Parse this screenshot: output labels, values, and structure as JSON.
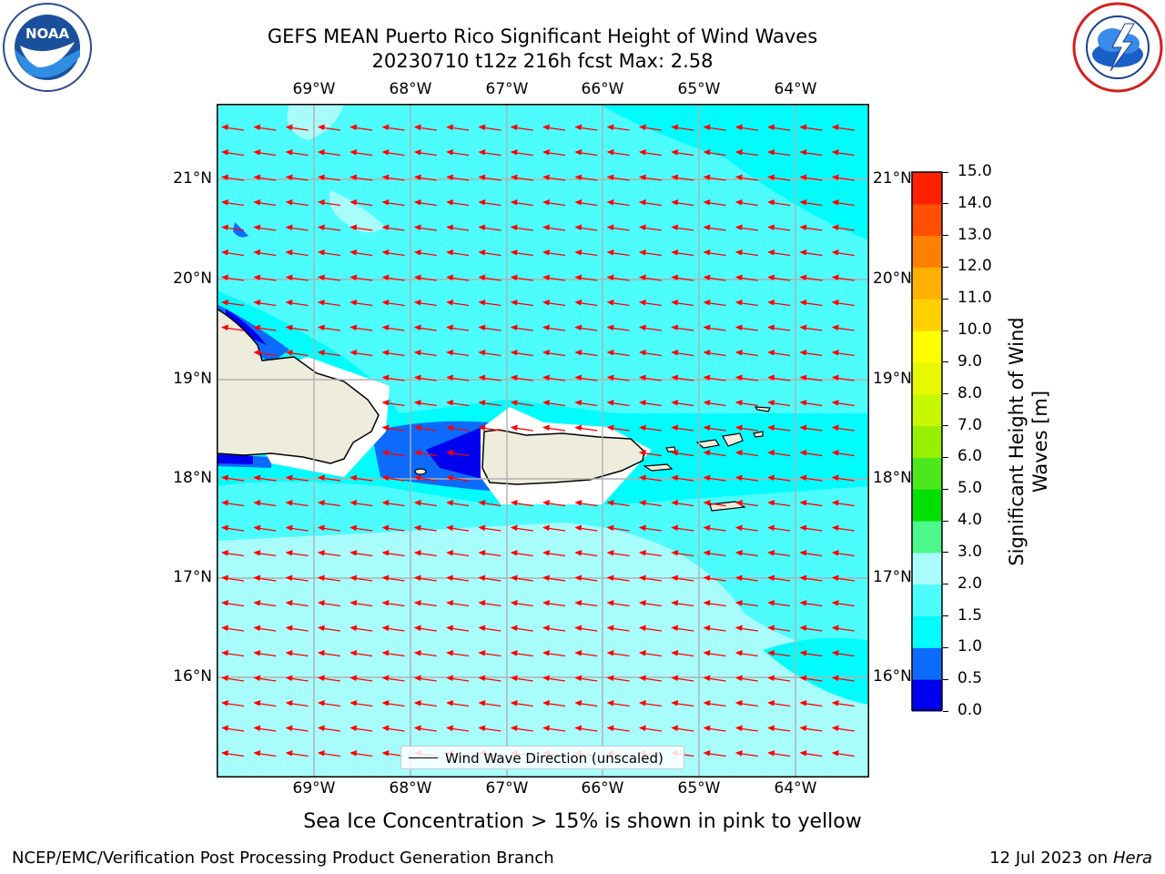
{
  "header": {
    "title_line1": "GEFS MEAN Puerto Rico Significant Height of Wind Waves",
    "title_line2": "20230710 t12z 216h fcst   Max: 2.58"
  },
  "logos": {
    "left": {
      "name": "noaa-logo",
      "text": "NOAA"
    },
    "right": {
      "name": "nws-logo"
    }
  },
  "map": {
    "lon_labels": [
      "69°W",
      "68°W",
      "67°W",
      "66°W",
      "65°W",
      "64°W"
    ],
    "lat_labels": [
      "21°N",
      "20°N",
      "19°N",
      "18°N",
      "17°N",
      "16°N"
    ],
    "ocean_colors": {
      "light": "#a8fcfc",
      "mid": "#4dfcfc",
      "cyan": "#00fcfc",
      "blue": "#0c6bfc",
      "deep": "#0000f0"
    },
    "land_color": "#eeecdc",
    "arrow_color": "#ff0000",
    "legend_label": "Wind Wave Direction (unscaled)"
  },
  "colorbar": {
    "title": "Significant Height of Wind Waves [m]",
    "ticks": [
      "0.0",
      "0.5",
      "1.0",
      "1.5",
      "2.0",
      "3.0",
      "4.0",
      "5.0",
      "6.0",
      "7.0",
      "8.0",
      "9.0",
      "10.0",
      "11.0",
      "12.0",
      "13.0",
      "14.0",
      "15.0"
    ],
    "colors": [
      "#0000f0",
      "#0c6bfc",
      "#00fcfc",
      "#4dfcfc",
      "#a8fcfc",
      "#4df88c",
      "#00e000",
      "#4ce81c",
      "#98f000",
      "#c8f800",
      "#e8f800",
      "#ffff00",
      "#ffd000",
      "#ffb000",
      "#ff8000",
      "#ff5000",
      "#ff2000",
      "#ff0000"
    ]
  },
  "notes": {
    "sea_ice": "Sea Ice Concentration > 15% is shown in pink to yellow"
  },
  "footer": {
    "left": "NCEP/EMC/Verification Post Processing Product Generation Branch",
    "right_date": "12 Jul 2023 on ",
    "right_machine": "Hera"
  }
}
